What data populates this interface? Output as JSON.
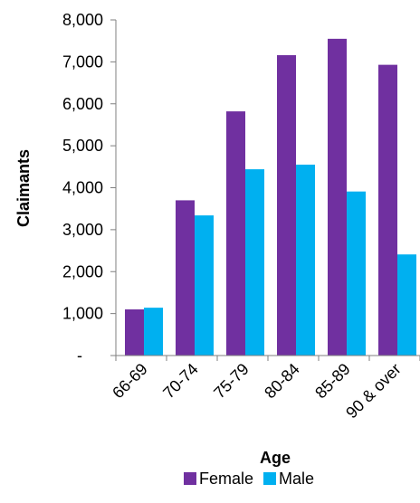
{
  "chart_data": {
    "type": "bar",
    "categories": [
      "66-69",
      "70-74",
      "75-79",
      "80-84",
      "85-89",
      "90 & over"
    ],
    "series": [
      {
        "name": "Female",
        "values": [
          1100,
          3700,
          5820,
          7160,
          7550,
          6930
        ],
        "color": "#7030a0"
      },
      {
        "name": "Male",
        "values": [
          1140,
          3340,
          4440,
          4550,
          3910,
          2410
        ],
        "color": "#00b0f0"
      }
    ],
    "xlabel": "Age",
    "ylabel": "Claimants",
    "ylim": [
      0,
      8000
    ],
    "yticks": [
      "-",
      "1,000",
      "2,000",
      "3,000",
      "4,000",
      "5,000",
      "6,000",
      "7,000",
      "8,000"
    ],
    "grid": false,
    "legend_position": "bottom"
  }
}
